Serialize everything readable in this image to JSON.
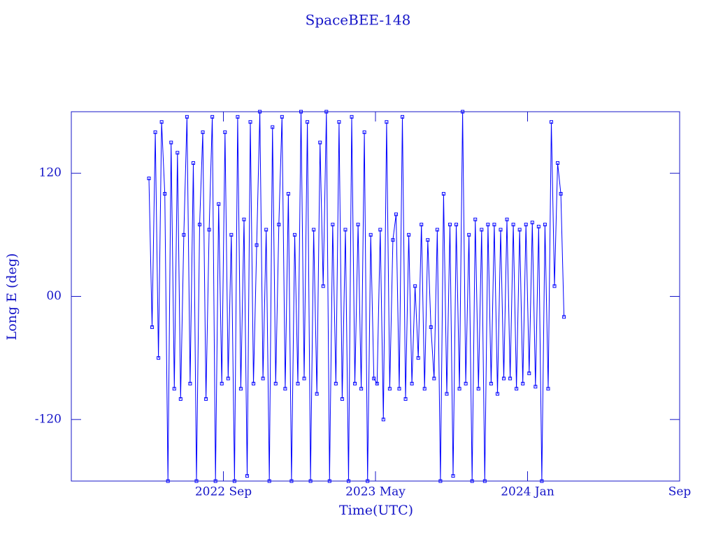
{
  "chart_data": {
    "type": "line",
    "title": "SpaceBEE-148",
    "x_label": "Time(UTC)",
    "y_label": "Long E (deg)",
    "xlim": [
      "2022-01",
      "2024-09"
    ],
    "xticks": [
      {
        "value": "2022-09",
        "label": "2022 Sep"
      },
      {
        "value": "2023-05",
        "label": "2023 May"
      },
      {
        "value": "2024-01",
        "label": "2024 Jan"
      },
      {
        "value": "2024-09",
        "label": "Sep"
      }
    ],
    "ylim": [
      -180,
      180
    ],
    "yticks": [
      -120,
      {
        "value": 0,
        "label": "00"
      },
      120
    ],
    "x": [
      "2022-05",
      "2022-05",
      "2022-05",
      "2022-05",
      "2022-05",
      "2022-05",
      "2022-06",
      "2022-06",
      "2022-06",
      "2022-06",
      "2022-06",
      "2022-06",
      "2022-07",
      "2022-07",
      "2022-07",
      "2022-07",
      "2022-07",
      "2022-07",
      "2022-08",
      "2022-08",
      "2022-08",
      "2022-08",
      "2022-08",
      "2022-08",
      "2022-09",
      "2022-09",
      "2022-09",
      "2022-09",
      "2022-09",
      "2022-09",
      "2022-10",
      "2022-10",
      "2022-10",
      "2022-10",
      "2022-10",
      "2022-10",
      "2022-11",
      "2022-11",
      "2022-11",
      "2022-11",
      "2022-11",
      "2022-11",
      "2022-12",
      "2022-12",
      "2022-12",
      "2022-12",
      "2022-12",
      "2022-12",
      "2023-01",
      "2023-01",
      "2023-01",
      "2023-01",
      "2023-01",
      "2023-01",
      "2023-02",
      "2023-02",
      "2023-02",
      "2023-02",
      "2023-02",
      "2023-02",
      "2023-03",
      "2023-03",
      "2023-03",
      "2023-03",
      "2023-03",
      "2023-03",
      "2023-04",
      "2023-04",
      "2023-04",
      "2023-04",
      "2023-04",
      "2023-04",
      "2023-05",
      "2023-05",
      "2023-05",
      "2023-05",
      "2023-05",
      "2023-05",
      "2023-06",
      "2023-06",
      "2023-06",
      "2023-06",
      "2023-06",
      "2023-06",
      "2023-07",
      "2023-07",
      "2023-07",
      "2023-07",
      "2023-07",
      "2023-07",
      "2023-08",
      "2023-08",
      "2023-08",
      "2023-08",
      "2023-08",
      "2023-08",
      "2023-09",
      "2023-09",
      "2023-09",
      "2023-09",
      "2023-09",
      "2023-09",
      "2023-10",
      "2023-10",
      "2023-10",
      "2023-10",
      "2023-10",
      "2023-10",
      "2023-11",
      "2023-11",
      "2023-11",
      "2023-11",
      "2023-11",
      "2023-11",
      "2023-12",
      "2023-12",
      "2023-12",
      "2023-12",
      "2023-12",
      "2023-12",
      "2024-01",
      "2024-01",
      "2024-01",
      "2024-01",
      "2024-01",
      "2024-01",
      "2024-02",
      "2024-02",
      "2024-02",
      "2024-02",
      "2024-02",
      "2024-02"
    ],
    "series": [
      {
        "color": "#0000ff",
        "values": [
          115,
          -30,
          160,
          -60,
          170,
          100,
          -180,
          150,
          -90,
          140,
          -100,
          60,
          175,
          -85,
          130,
          -180,
          70,
          160,
          -100,
          65,
          175,
          -180,
          90,
          -85,
          160,
          -80,
          60,
          -180,
          175,
          -90,
          75,
          -175,
          170,
          -85,
          50,
          180,
          -80,
          65,
          -180,
          165,
          -85,
          70,
          175,
          -90,
          100,
          -180,
          60,
          -85,
          180,
          -80,
          170,
          -180,
          65,
          -95,
          150,
          10,
          180,
          -180,
          70,
          -85,
          170,
          -100,
          65,
          -180,
          175,
          -85,
          70,
          -90,
          160,
          -180,
          60,
          -80,
          -85,
          65,
          -120,
          170,
          -90,
          55,
          80,
          -90,
          175,
          -100,
          60,
          -85,
          10,
          -60,
          70,
          -90,
          55,
          -30,
          -80,
          65,
          -180,
          100,
          -95,
          70,
          -175,
          70,
          -90,
          180,
          -85,
          60,
          -180,
          75,
          -90,
          65,
          -180,
          70,
          -85,
          70,
          -95,
          65,
          -80,
          75,
          -80,
          70,
          -90,
          65,
          -85,
          70,
          -75,
          72,
          -88,
          68,
          -180,
          70,
          -90,
          170,
          10,
          130,
          100,
          -20
        ]
      }
    ]
  }
}
